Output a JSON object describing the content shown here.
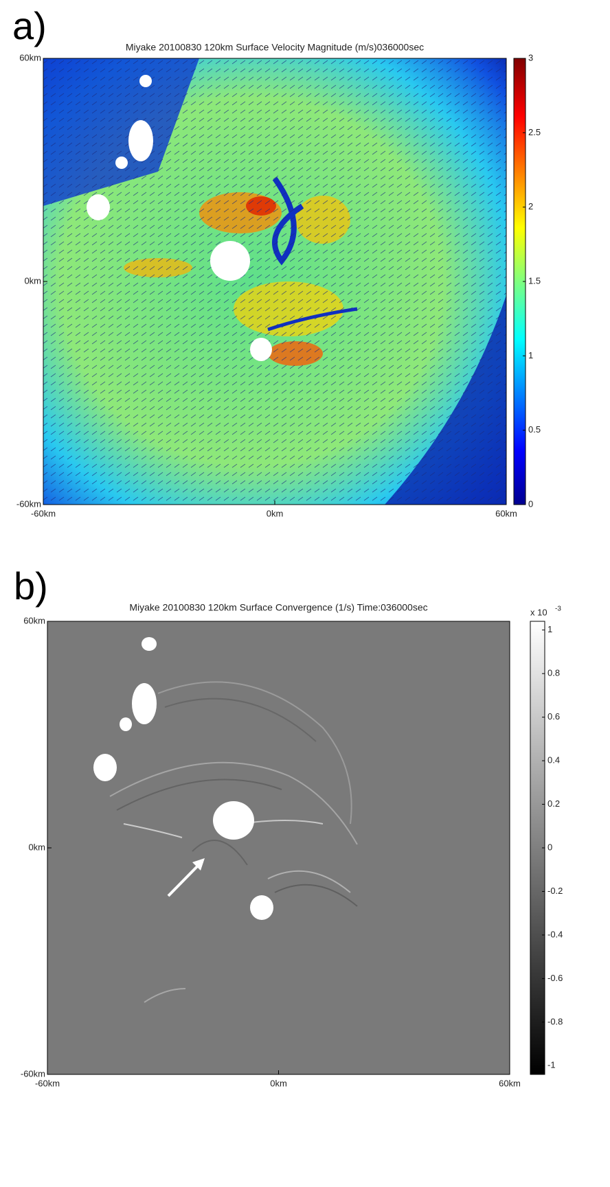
{
  "chart_data": [
    {
      "type": "heatmap",
      "panel_label": "a)",
      "title": "Miyake  20100830  120km Surface Velocity Magnitude (m/s)036000sec",
      "colormap": "jet",
      "xlim": [
        -60,
        60
      ],
      "ylim": [
        -60,
        60
      ],
      "xticks": [
        {
          "value": -60,
          "label": "-60km"
        },
        {
          "value": 0,
          "label": "0km"
        },
        {
          "value": 60,
          "label": "60km"
        }
      ],
      "yticks": [
        {
          "value": -60,
          "label": "-60km"
        },
        {
          "value": 0,
          "label": "0km"
        },
        {
          "value": 60,
          "label": "60km"
        }
      ],
      "clim": [
        0,
        3
      ],
      "cticks": [
        0,
        0.5,
        1,
        1.5,
        2,
        2.5,
        3
      ]
    },
    {
      "type": "heatmap",
      "panel_label": "b)",
      "title": "Miyake  20100830  120km Surface Convergence (1/s) Time:036000sec",
      "colormap": "gray",
      "xlim": [
        -60,
        60
      ],
      "ylim": [
        -60,
        60
      ],
      "xticks": [
        {
          "value": -60,
          "label": "-60km"
        },
        {
          "value": 0,
          "label": "0km"
        },
        {
          "value": 60,
          "label": "60km"
        }
      ],
      "yticks": [
        {
          "value": -60,
          "label": "-60km"
        },
        {
          "value": 0,
          "label": "0km"
        },
        {
          "value": 60,
          "label": "60km"
        }
      ],
      "clim": [
        -1.04,
        1.04
      ],
      "cticks": [
        -1,
        -0.8,
        -0.6,
        -0.4,
        -0.2,
        0,
        0.2,
        0.4,
        0.6,
        0.8,
        1
      ],
      "colorbar_multiplier": "x 10",
      "colorbar_exponent": "-3"
    }
  ]
}
